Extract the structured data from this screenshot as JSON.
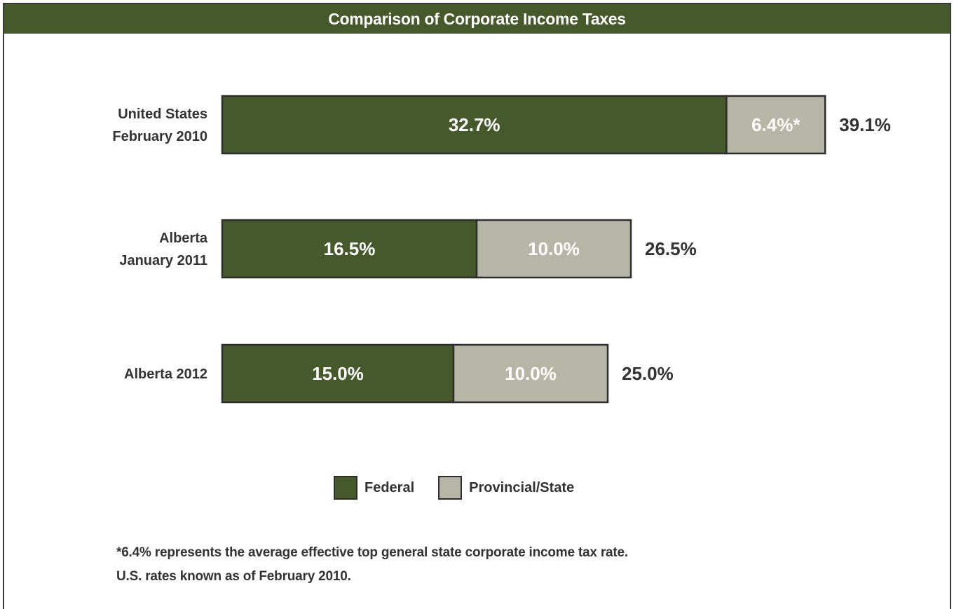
{
  "chart_data": {
    "type": "bar",
    "orientation": "horizontal",
    "stacked": true,
    "title": "Comparison of Corporate Income Taxes",
    "categories": [
      [
        "United States",
        "February 2010"
      ],
      [
        "Alberta",
        "January 2011"
      ],
      [
        "Alberta 2012"
      ]
    ],
    "series": [
      {
        "name": "Federal",
        "color": "#45592a",
        "values": [
          32.7,
          16.5,
          15.0
        ],
        "labels": [
          "32.7%",
          "16.5%",
          "15.0%"
        ]
      },
      {
        "name": "Provincial/State",
        "color": "#b6b6a6",
        "values": [
          6.4,
          10.0,
          10.0
        ],
        "labels": [
          "6.4%*",
          "10.0%",
          "10.0%"
        ]
      }
    ],
    "totals": [
      39.1,
      26.5,
      25.0
    ],
    "total_labels": [
      "39.1%",
      "26.5%",
      "25.0%"
    ],
    "grid": false,
    "legend_position": "bottom"
  },
  "footnotes": [
    "*6.4% represents the average effective top general state corporate income tax rate.",
    "U.S. rates known as of February 2010."
  ]
}
